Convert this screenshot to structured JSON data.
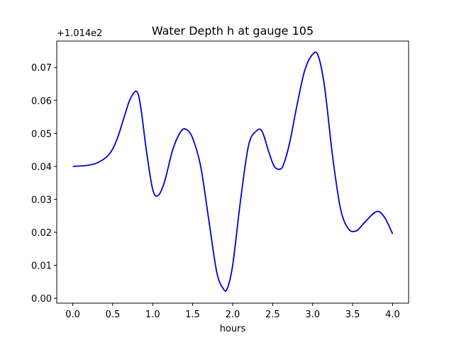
{
  "chart_data": {
    "type": "line",
    "title": "Water Depth h at gauge 105",
    "xlabel": "hours",
    "ylabel": "",
    "y_offset_label": "+1.014e2",
    "xlim": [
      -0.2,
      4.2
    ],
    "ylim": [
      -0.0015,
      0.078
    ],
    "xticks": [
      0.0,
      0.5,
      1.0,
      1.5,
      2.0,
      2.5,
      3.0,
      3.5,
      4.0
    ],
    "xtick_labels": [
      "0.0",
      "0.5",
      "1.0",
      "1.5",
      "2.0",
      "2.5",
      "3.0",
      "3.5",
      "4.0"
    ],
    "yticks": [
      0.0,
      0.01,
      0.02,
      0.03,
      0.04,
      0.05,
      0.06,
      0.07
    ],
    "ytick_labels": [
      "0.00",
      "0.01",
      "0.02",
      "0.03",
      "0.04",
      "0.05",
      "0.06",
      "0.07"
    ],
    "grid": false,
    "color": "#0000cc",
    "series": [
      {
        "x": [
          0.0,
          0.15,
          0.3,
          0.45,
          0.55,
          0.65,
          0.72,
          0.8,
          0.85,
          0.92,
          1.0,
          1.07,
          1.15,
          1.25,
          1.35,
          1.42,
          1.5,
          1.6,
          1.7,
          1.8,
          1.88,
          1.93,
          2.0,
          2.1,
          2.2,
          2.3,
          2.37,
          2.45,
          2.52,
          2.6,
          2.65,
          2.72,
          2.8,
          2.9,
          3.0,
          3.07,
          3.15,
          3.25,
          3.35,
          3.45,
          3.55,
          3.65,
          3.8,
          3.9,
          4.0
        ],
        "y": [
          0.04,
          0.0402,
          0.041,
          0.0435,
          0.048,
          0.0555,
          0.0605,
          0.0627,
          0.058,
          0.045,
          0.033,
          0.0312,
          0.0355,
          0.045,
          0.0505,
          0.0512,
          0.0485,
          0.04,
          0.024,
          0.008,
          0.003,
          0.0028,
          0.01,
          0.03,
          0.0465,
          0.0508,
          0.0505,
          0.0445,
          0.04,
          0.0392,
          0.0415,
          0.048,
          0.058,
          0.069,
          0.074,
          0.0735,
          0.064,
          0.043,
          0.027,
          0.021,
          0.0205,
          0.023,
          0.0263,
          0.0245,
          0.0195
        ]
      }
    ]
  }
}
